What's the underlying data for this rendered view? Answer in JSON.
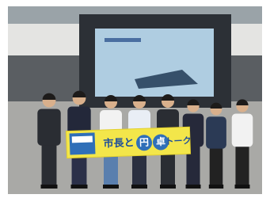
{
  "banner": {
    "parts": [
      "市長と",
      "円",
      "卓",
      "トーク"
    ]
  }
}
